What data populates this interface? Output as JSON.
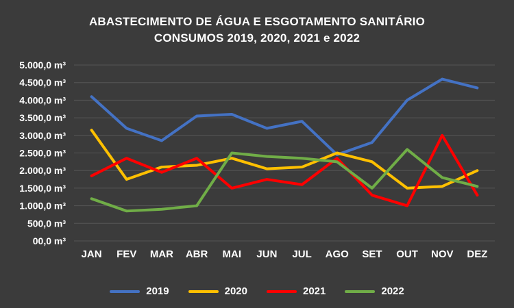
{
  "title_line1": "ABASTECIMENTO DE ÁGUA E ESGOTAMENTO SANITÁRIO",
  "title_line2": "CONSUMOS 2019, 2020, 2021 e 2022",
  "colors": {
    "background": "#3b3b3b",
    "grid": "#565656",
    "text": "#ffffff"
  },
  "chart_data": {
    "type": "line",
    "title": "ABASTECIMENTO DE ÁGUA E ESGOTAMENTO SANITÁRIO CONSUMOS 2019, 2020, 2021 e 2022",
    "categories": [
      "JAN",
      "FEV",
      "MAR",
      "ABR",
      "MAI",
      "JUN",
      "JUL",
      "AGO",
      "SET",
      "OUT",
      "NOV",
      "DEZ"
    ],
    "series": [
      {
        "name": "2019",
        "color": "#4472C4",
        "values": [
          4100,
          3200,
          2850,
          3550,
          3600,
          3200,
          3400,
          2450,
          2800,
          4000,
          4600,
          4350
        ]
      },
      {
        "name": "2020",
        "color": "#FFC000",
        "values": [
          3150,
          1750,
          2100,
          2150,
          2350,
          2050,
          2100,
          2500,
          2250,
          1500,
          1550,
          2000
        ]
      },
      {
        "name": "2021",
        "color": "#FF0000",
        "values": [
          1850,
          2350,
          1950,
          2350,
          1500,
          1750,
          1600,
          2350,
          1300,
          1000,
          3000,
          1300
        ]
      },
      {
        "name": "2022",
        "color": "#70AD47",
        "values": [
          1200,
          850,
          900,
          1000,
          2500,
          2400,
          2350,
          2250,
          1500,
          2600,
          1800,
          1550
        ]
      }
    ],
    "ylabel": "m³",
    "xlabel": "",
    "ylim": [
      0,
      5000
    ],
    "y_tick_step": 500,
    "y_ticks": [
      "5.000,0 m³",
      "4.500,0 m³",
      "4.000,0 m³",
      "3.500,0 m³",
      "3.000,0 m³",
      "2.500,0 m³",
      "2.000,0 m³",
      "1.500,0 m³",
      "1.000,0 m³",
      "500,0 m³",
      "00,0 m³"
    ],
    "grid": true,
    "legend_position": "bottom",
    "legend_entries": [
      "2019",
      "2020",
      "2021",
      "2022"
    ]
  }
}
